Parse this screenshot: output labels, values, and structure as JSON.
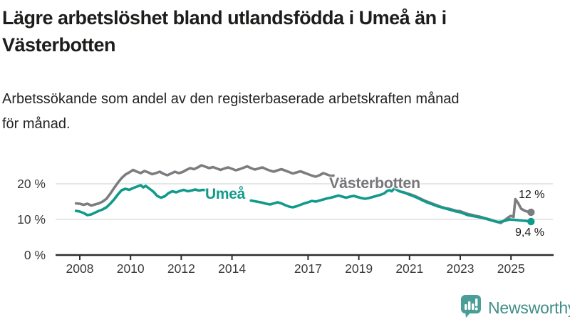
{
  "header": {
    "title_line1": "Lägre arbetslöshet bland utlandsfödda i Umeå än i",
    "title_line2": "Västerbotten",
    "subtitle_line1": "Arbetssökande som andel av den registerbaserade arbetskraften månad",
    "subtitle_line2": "för månad."
  },
  "colors": {
    "vasterbotten_line": "#7c7d80",
    "umea_line": "#119a8b",
    "gridline": "#d8d8d8",
    "axis": "#2d2d2d",
    "logo_teal": "#4a9e97"
  },
  "chart_data": {
    "type": "line",
    "unit": "%",
    "grid": "horizontal",
    "legend_position": "inline-labels",
    "ylim": [
      0,
      27
    ],
    "xlim": [
      2007.8,
      2026.2
    ],
    "y_ticks": [
      {
        "label": "20 %",
        "value": 20
      },
      {
        "label": "10 %",
        "value": 10
      },
      {
        "label": "0 %",
        "value": 0
      }
    ],
    "x_ticks": [
      {
        "label": "2008",
        "year": 2008
      },
      {
        "label": "2010",
        "year": 2010
      },
      {
        "label": "2012",
        "year": 2012
      },
      {
        "label": "2014",
        "year": 2014
      },
      {
        "label": "2017",
        "year": 2017
      },
      {
        "label": "2019",
        "year": 2019
      },
      {
        "label": "2021",
        "year": 2021
      },
      {
        "label": "2023",
        "year": 2023
      },
      {
        "label": "2025",
        "year": 2025
      }
    ],
    "series": [
      {
        "name": "Västerbotten",
        "color": "#7c7d80",
        "end_label": "12 %",
        "end_value": 12.0,
        "segments": [
          [
            [
              2007.85,
              14.5
            ],
            [
              2008.0,
              14.4
            ],
            [
              2008.15,
              14.1
            ],
            [
              2008.3,
              14.4
            ],
            [
              2008.45,
              13.9
            ],
            [
              2008.6,
              14.2
            ],
            [
              2008.75,
              14.5
            ],
            [
              2008.9,
              15.0
            ],
            [
              2009.05,
              15.8
            ],
            [
              2009.2,
              17.2
            ],
            [
              2009.35,
              18.8
            ],
            [
              2009.5,
              20.3
            ],
            [
              2009.65,
              21.6
            ],
            [
              2009.8,
              22.6
            ],
            [
              2009.95,
              23.2
            ],
            [
              2010.1,
              23.9
            ],
            [
              2010.25,
              23.4
            ],
            [
              2010.4,
              23.0
            ],
            [
              2010.55,
              23.6
            ],
            [
              2010.7,
              23.2
            ],
            [
              2010.85,
              22.7
            ],
            [
              2011.0,
              23.0
            ],
            [
              2011.15,
              23.4
            ],
            [
              2011.3,
              22.8
            ],
            [
              2011.45,
              22.4
            ],
            [
              2011.6,
              22.9
            ],
            [
              2011.75,
              23.4
            ],
            [
              2011.9,
              23.0
            ],
            [
              2012.05,
              23.3
            ],
            [
              2012.2,
              23.9
            ],
            [
              2012.35,
              24.4
            ],
            [
              2012.5,
              24.1
            ],
            [
              2012.65,
              24.6
            ],
            [
              2012.8,
              25.2
            ],
            [
              2012.95,
              24.8
            ],
            [
              2013.1,
              24.4
            ],
            [
              2013.25,
              24.7
            ],
            [
              2013.4,
              24.3
            ],
            [
              2013.55,
              23.9
            ],
            [
              2013.7,
              24.3
            ],
            [
              2013.85,
              24.6
            ],
            [
              2014.0,
              24.2
            ],
            [
              2014.15,
              23.8
            ],
            [
              2014.3,
              24.1
            ],
            [
              2014.45,
              24.5
            ],
            [
              2014.6,
              24.9
            ],
            [
              2014.75,
              24.4
            ],
            [
              2014.9,
              24.0
            ],
            [
              2015.05,
              24.3
            ],
            [
              2015.2,
              24.6
            ],
            [
              2015.35,
              24.1
            ],
            [
              2015.5,
              23.7
            ],
            [
              2015.65,
              23.4
            ],
            [
              2015.8,
              23.8
            ],
            [
              2015.95,
              24.1
            ],
            [
              2016.1,
              23.7
            ],
            [
              2016.25,
              23.3
            ],
            [
              2016.4,
              22.9
            ],
            [
              2016.55,
              23.2
            ],
            [
              2016.7,
              23.5
            ],
            [
              2016.85,
              23.1
            ],
            [
              2017.0,
              22.7
            ],
            [
              2017.15,
              22.3
            ],
            [
              2017.3,
              22.0
            ],
            [
              2017.45,
              22.4
            ],
            [
              2017.6,
              23.0
            ],
            [
              2017.75,
              22.6
            ],
            [
              2017.9,
              22.2
            ],
            [
              2018.0,
              22.3
            ]
          ],
          [
            [
              2020.75,
              17.7
            ],
            [
              2020.9,
              17.3
            ],
            [
              2021.05,
              17.0
            ],
            [
              2021.2,
              16.6
            ],
            [
              2021.35,
              16.1
            ],
            [
              2021.5,
              15.6
            ],
            [
              2021.65,
              15.1
            ],
            [
              2021.8,
              14.7
            ],
            [
              2021.95,
              14.3
            ],
            [
              2022.1,
              13.9
            ],
            [
              2022.25,
              13.5
            ],
            [
              2022.4,
              13.2
            ],
            [
              2022.55,
              13.0
            ],
            [
              2022.7,
              12.7
            ],
            [
              2022.85,
              12.4
            ],
            [
              2023.0,
              12.3
            ],
            [
              2023.15,
              11.9
            ],
            [
              2023.3,
              11.5
            ],
            [
              2023.45,
              11.3
            ],
            [
              2023.6,
              11.0
            ],
            [
              2023.75,
              10.8
            ],
            [
              2023.9,
              10.5
            ],
            [
              2024.05,
              10.2
            ],
            [
              2024.2,
              9.9
            ],
            [
              2024.35,
              9.5
            ],
            [
              2024.5,
              9.2
            ],
            [
              2024.6,
              9.0
            ],
            [
              2024.75,
              9.8
            ],
            [
              2024.9,
              10.6
            ],
            [
              2025.0,
              11.0
            ],
            [
              2025.1,
              10.7
            ],
            [
              2025.17,
              15.7
            ],
            [
              2025.28,
              14.6
            ],
            [
              2025.4,
              13.0
            ],
            [
              2025.55,
              12.4
            ],
            [
              2025.7,
              12.1
            ],
            [
              2025.79,
              12.0
            ]
          ]
        ]
      },
      {
        "name": "Umeå",
        "color": "#119a8b",
        "end_label": "9,4 %",
        "end_value": 9.4,
        "segments": [
          [
            [
              2007.85,
              12.4
            ],
            [
              2008.0,
              12.2
            ],
            [
              2008.15,
              11.8
            ],
            [
              2008.3,
              11.2
            ],
            [
              2008.45,
              11.4
            ],
            [
              2008.6,
              11.9
            ],
            [
              2008.75,
              12.4
            ],
            [
              2008.9,
              12.8
            ],
            [
              2009.05,
              13.4
            ],
            [
              2009.2,
              14.4
            ],
            [
              2009.35,
              15.6
            ],
            [
              2009.5,
              17.0
            ],
            [
              2009.65,
              18.2
            ],
            [
              2009.8,
              18.6
            ],
            [
              2009.95,
              18.3
            ],
            [
              2010.1,
              18.8
            ],
            [
              2010.25,
              19.2
            ],
            [
              2010.4,
              19.6
            ],
            [
              2010.5,
              19.0
            ],
            [
              2010.6,
              19.4
            ],
            [
              2010.75,
              18.6
            ],
            [
              2010.9,
              17.8
            ],
            [
              2011.05,
              16.6
            ],
            [
              2011.2,
              16.1
            ],
            [
              2011.35,
              16.5
            ],
            [
              2011.5,
              17.4
            ],
            [
              2011.65,
              17.9
            ],
            [
              2011.8,
              17.6
            ],
            [
              2011.95,
              18.0
            ],
            [
              2012.1,
              18.3
            ],
            [
              2012.25,
              17.9
            ],
            [
              2012.4,
              18.1
            ],
            [
              2012.55,
              18.4
            ],
            [
              2012.7,
              18.1
            ],
            [
              2012.85,
              18.3
            ],
            [
              2013.0,
              18.2
            ]
          ],
          [
            [
              2014.75,
              15.3
            ],
            [
              2014.9,
              15.1
            ],
            [
              2015.05,
              14.9
            ],
            [
              2015.2,
              14.7
            ],
            [
              2015.35,
              14.4
            ],
            [
              2015.5,
              14.2
            ],
            [
              2015.65,
              14.5
            ],
            [
              2015.8,
              14.8
            ],
            [
              2015.95,
              14.5
            ],
            [
              2016.1,
              14.0
            ],
            [
              2016.25,
              13.6
            ],
            [
              2016.4,
              13.4
            ],
            [
              2016.55,
              13.7
            ],
            [
              2016.7,
              14.1
            ],
            [
              2016.85,
              14.5
            ],
            [
              2017.0,
              14.8
            ],
            [
              2017.15,
              15.2
            ],
            [
              2017.3,
              15.0
            ],
            [
              2017.45,
              15.3
            ],
            [
              2017.6,
              15.6
            ],
            [
              2017.75,
              15.9
            ],
            [
              2017.9,
              16.1
            ],
            [
              2018.05,
              16.4
            ],
            [
              2018.2,
              16.7
            ],
            [
              2018.35,
              16.4
            ],
            [
              2018.5,
              16.1
            ],
            [
              2018.65,
              16.4
            ],
            [
              2018.8,
              16.6
            ],
            [
              2018.95,
              16.3
            ],
            [
              2019.1,
              16.0
            ],
            [
              2019.25,
              15.8
            ],
            [
              2019.4,
              16.0
            ],
            [
              2019.55,
              16.3
            ],
            [
              2019.7,
              16.6
            ],
            [
              2019.85,
              16.9
            ],
            [
              2020.0,
              17.3
            ],
            [
              2020.1,
              17.9
            ],
            [
              2020.2,
              18.3
            ],
            [
              2020.3,
              17.9
            ],
            [
              2020.4,
              18.7
            ],
            [
              2020.5,
              18.3
            ],
            [
              2020.6,
              17.9
            ],
            [
              2020.75,
              17.6
            ],
            [
              2020.9,
              17.2
            ],
            [
              2021.05,
              16.8
            ],
            [
              2021.2,
              16.4
            ],
            [
              2021.35,
              15.9
            ],
            [
              2021.5,
              15.4
            ],
            [
              2021.65,
              14.9
            ],
            [
              2021.8,
              14.5
            ],
            [
              2021.95,
              14.1
            ],
            [
              2022.1,
              13.7
            ],
            [
              2022.25,
              13.4
            ],
            [
              2022.4,
              13.1
            ],
            [
              2022.55,
              12.8
            ],
            [
              2022.7,
              12.5
            ],
            [
              2022.85,
              12.2
            ],
            [
              2023.0,
              12.0
            ],
            [
              2023.15,
              11.6
            ],
            [
              2023.3,
              11.2
            ],
            [
              2023.45,
              11.0
            ],
            [
              2023.6,
              10.8
            ],
            [
              2023.75,
              10.6
            ],
            [
              2023.9,
              10.4
            ],
            [
              2024.05,
              10.1
            ],
            [
              2024.2,
              9.8
            ],
            [
              2024.35,
              9.5
            ],
            [
              2024.5,
              9.3
            ],
            [
              2024.65,
              9.4
            ],
            [
              2024.8,
              9.7
            ],
            [
              2024.95,
              10.0
            ],
            [
              2025.1,
              9.9
            ],
            [
              2025.25,
              9.8
            ],
            [
              2025.4,
              9.7
            ],
            [
              2025.55,
              9.6
            ],
            [
              2025.79,
              9.4
            ]
          ]
        ]
      }
    ]
  },
  "branding": {
    "logo_text": "Newsworthy",
    "logo_icon": "bar-chart-speech-bubble"
  }
}
